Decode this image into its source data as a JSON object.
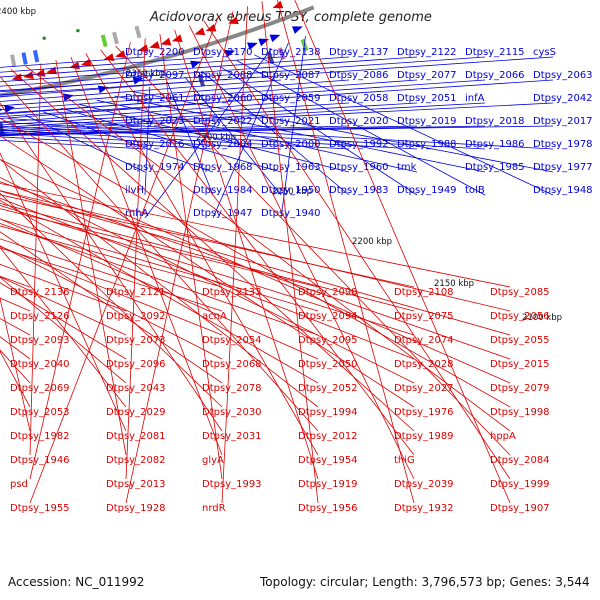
{
  "title": "Acidovorax ebreus TPSY, complete genome",
  "accession": "Accession: NC_011992",
  "summary": "Topology: circular; Length: 3,796,573 bp; Genes: 3,544",
  "colors": {
    "plus": "#0000dd",
    "minus": "#dd0000",
    "backbone": "#888888",
    "tick": "#111111"
  },
  "kbp_labels": [
    "2400 kbp",
    "2350 kbp",
    "2300 kbp",
    "2250 kbp",
    "2200 kbp",
    "2150 kbp",
    "2100 kbp"
  ],
  "plus_labels": [
    "Dtpsy_2200",
    "Dtpsy_2170",
    "Dtpsy_2138",
    "Dtpsy_2137",
    "Dtpsy_2122",
    "Dtpsy_2115",
    "cysS",
    "Dtpsy_2097",
    "Dtpsy_2088",
    "Dtpsy_2087",
    "Dtpsy_2086",
    "Dtpsy_2077",
    "Dtpsy_2066",
    "Dtpsy_2063",
    "Dtpsy_2061",
    "Dtpsy_2060",
    "Dtpsy_2059",
    "Dtpsy_2058",
    "Dtpsy_2051",
    "infA",
    "Dtpsy_2042",
    "Dtpsy_2023",
    "Dtpsy_2022",
    "Dtpsy_2021",
    "Dtpsy_2020",
    "Dtpsy_2019",
    "Dtpsy_2018",
    "Dtpsy_2017",
    "Dtpsy_2016",
    "Dtpsy_2004",
    "Dtpsy_2000",
    "Dtpsy_1992",
    "Dtpsy_1988",
    "Dtpsy_1986",
    "Dtpsy_1978",
    "Dtpsy_1974",
    "Dtpsy_1968",
    "Dtpsy_1963",
    "Dtpsy_1960",
    "tmk",
    "Dtpsy_1985",
    "Dtpsy_1977",
    "ilvH",
    "Dtpsy_1984",
    "Dtpsy_1950",
    "Dtpsy_1983",
    "Dtpsy_1949",
    "tolB",
    "Dtpsy_1948",
    "rnhA",
    "Dtpsy_1947",
    "Dtpsy_1940"
  ],
  "minus_labels": [
    "Dtpsy_2136",
    "Dtpsy_2121",
    "Dtpsy_2133",
    "Dtpsy_2098",
    "Dtpsy_2108",
    "Dtpsy_2085",
    "Dtpsy_2126",
    "Dtpsy_2092",
    "acnA",
    "Dtpsy_2094",
    "Dtpsy_2075",
    "Dtpsy_2056",
    "Dtpsy_2093",
    "Dtpsy_2073",
    "Dtpsy_2054",
    "Dtpsy_2095",
    "Dtpsy_2074",
    "Dtpsy_2055",
    "Dtpsy_2040",
    "Dtpsy_2096",
    "Dtpsy_2068",
    "Dtpsy_2050",
    "Dtpsy_2028",
    "Dtpsy_2015",
    "Dtpsy_2069",
    "Dtpsy_2043",
    "Dtpsy_2078",
    "Dtpsy_2052",
    "Dtpsy_2027",
    "Dtpsy_2079",
    "Dtpsy_2053",
    "Dtpsy_2029",
    "Dtpsy_2030",
    "Dtpsy_1994",
    "Dtpsy_1976",
    "Dtpsy_1998",
    "Dtpsy_1982",
    "Dtpsy_2081",
    "Dtpsy_2031",
    "Dtpsy_2012",
    "Dtpsy_1989",
    "hppA",
    "Dtpsy_1946",
    "Dtpsy_2082",
    "glyA",
    "Dtpsy_1954",
    "thiG",
    "Dtpsy_2084",
    "psd",
    "Dtpsy_2013",
    "Dtpsy_1993",
    "Dtpsy_1919",
    "Dtpsy_2039",
    "Dtpsy_1999",
    "Dtpsy_1955",
    "Dtpsy_1928",
    "nrdR",
    "Dtpsy_1956",
    "Dtpsy_1932",
    "Dtpsy_1907"
  ]
}
